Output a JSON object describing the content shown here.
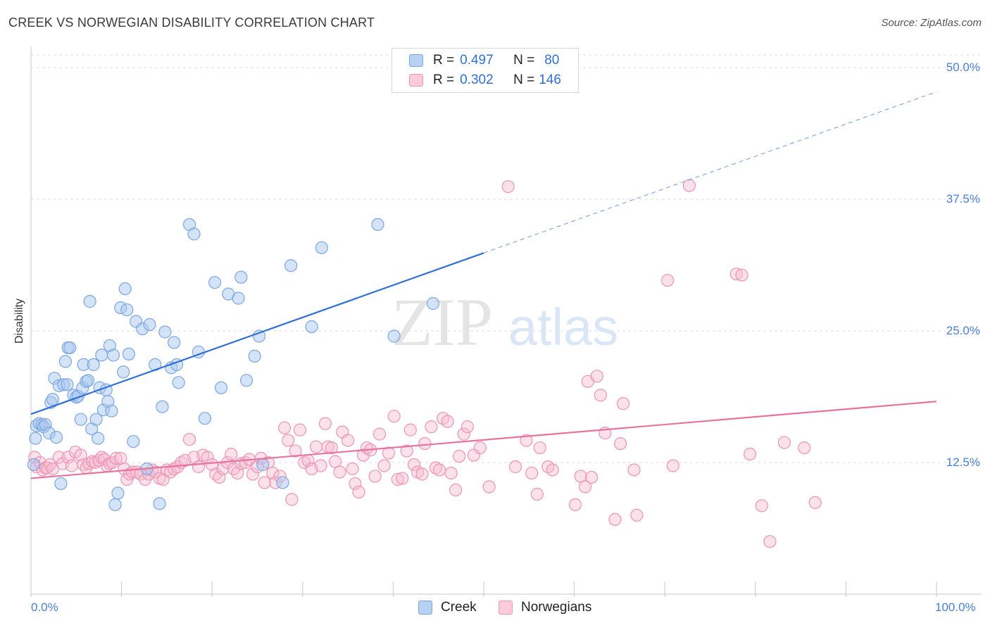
{
  "header": {
    "title": "CREEK VS NORWEGIAN DISABILITY CORRELATION CHART",
    "source": "Source: ZipAtlas.com"
  },
  "legend": {
    "creek": {
      "r_label": "R =",
      "r_value": "0.497",
      "n_label": "N =",
      "n_value": "80"
    },
    "norwegians": {
      "r_label": "R =",
      "r_value": "0.302",
      "n_label": "N =",
      "n_value": "146"
    }
  },
  "watermark": {
    "part1": "ZIP",
    "part2": "atlas"
  },
  "colors": {
    "creek_fill": "#a9c8f0",
    "creek_stroke": "#7aa7e0",
    "creek_line": "#2f6fd6",
    "norw_fill": "#f7bdd0",
    "norw_stroke": "#ee93b3",
    "norw_line": "#e8739d",
    "tick_label": "#4a7fd4",
    "grid": "#dddddd"
  },
  "chart_data": {
    "type": "scatter",
    "title": "CREEK VS NORWEGIAN DISABILITY CORRELATION CHART",
    "xlabel": "",
    "ylabel": "Disability",
    "xlim": [
      0,
      100
    ],
    "ylim": [
      0,
      50
    ],
    "y_ticks": [
      12.5,
      25.0,
      37.5,
      50.0
    ],
    "y_tick_labels": [
      "12.5%",
      "25.0%",
      "37.5%",
      "50.0%"
    ],
    "x_tick_labels": [
      "0.0%",
      "100.0%"
    ],
    "grid": "dashed horizontal",
    "legend_position": "top-center",
    "series": [
      {
        "name": "Creek",
        "trend": {
          "x0": 0,
          "y0": 17.1,
          "x1": 50,
          "y1": 32.4,
          "dashed_to_x": 100,
          "dashed_to_y": 47.7
        },
        "points": [
          [
            0.3,
            12.3
          ],
          [
            0.5,
            14.8
          ],
          [
            0.6,
            16.0
          ],
          [
            0.9,
            16.2
          ],
          [
            1.2,
            16.1
          ],
          [
            1.4,
            15.9
          ],
          [
            1.6,
            16.1
          ],
          [
            2.0,
            15.3
          ],
          [
            2.2,
            18.2
          ],
          [
            2.4,
            18.5
          ],
          [
            2.6,
            20.5
          ],
          [
            2.8,
            14.9
          ],
          [
            3.1,
            19.8
          ],
          [
            3.3,
            10.5
          ],
          [
            3.6,
            19.9
          ],
          [
            3.8,
            22.1
          ],
          [
            4.0,
            19.9
          ],
          [
            4.1,
            23.4
          ],
          [
            4.3,
            23.4
          ],
          [
            4.7,
            18.9
          ],
          [
            5.0,
            18.7
          ],
          [
            5.2,
            18.8
          ],
          [
            5.5,
            16.6
          ],
          [
            5.7,
            19.6
          ],
          [
            5.8,
            21.8
          ],
          [
            6.1,
            20.2
          ],
          [
            6.3,
            20.3
          ],
          [
            6.5,
            27.8
          ],
          [
            6.7,
            15.7
          ],
          [
            6.9,
            21.8
          ],
          [
            7.2,
            16.6
          ],
          [
            7.4,
            14.8
          ],
          [
            7.6,
            19.6
          ],
          [
            7.8,
            22.7
          ],
          [
            8.0,
            17.5
          ],
          [
            8.3,
            19.4
          ],
          [
            8.5,
            18.3
          ],
          [
            8.7,
            23.6
          ],
          [
            8.9,
            17.4
          ],
          [
            9.1,
            22.7
          ],
          [
            9.3,
            8.5
          ],
          [
            9.6,
            9.6
          ],
          [
            9.9,
            27.2
          ],
          [
            10.2,
            21.1
          ],
          [
            10.4,
            29.0
          ],
          [
            10.6,
            27.0
          ],
          [
            10.8,
            22.8
          ],
          [
            11.3,
            14.5
          ],
          [
            11.6,
            25.9
          ],
          [
            12.3,
            25.2
          ],
          [
            12.8,
            11.9
          ],
          [
            13.1,
            25.6
          ],
          [
            13.7,
            21.8
          ],
          [
            14.2,
            8.6
          ],
          [
            14.5,
            17.8
          ],
          [
            14.8,
            24.9
          ],
          [
            15.5,
            21.5
          ],
          [
            15.8,
            23.9
          ],
          [
            16.1,
            21.8
          ],
          [
            16.3,
            20.1
          ],
          [
            17.5,
            35.1
          ],
          [
            18.0,
            34.2
          ],
          [
            18.5,
            23.0
          ],
          [
            19.2,
            16.7
          ],
          [
            20.3,
            29.6
          ],
          [
            21.0,
            19.6
          ],
          [
            21.8,
            28.5
          ],
          [
            22.9,
            28.1
          ],
          [
            23.2,
            30.1
          ],
          [
            23.8,
            20.3
          ],
          [
            24.7,
            22.6
          ],
          [
            25.2,
            24.5
          ],
          [
            25.6,
            12.3
          ],
          [
            27.8,
            10.6
          ],
          [
            28.7,
            31.2
          ],
          [
            31.0,
            25.4
          ],
          [
            32.1,
            32.9
          ],
          [
            38.3,
            35.1
          ],
          [
            40.1,
            24.5
          ],
          [
            44.4,
            27.6
          ]
        ]
      },
      {
        "name": "Norwegians",
        "trend": {
          "x0": 0,
          "y0": 11.0,
          "x1": 100,
          "y1": 18.3
        },
        "points": [
          [
            0.4,
            13.0
          ],
          [
            0.6,
            12.1
          ],
          [
            1.0,
            12.5
          ],
          [
            1.3,
            11.8
          ],
          [
            1.6,
            12.0
          ],
          [
            1.8,
            12.0
          ],
          [
            2.1,
            12.3
          ],
          [
            2.4,
            11.9
          ],
          [
            3.1,
            13.0
          ],
          [
            3.5,
            12.4
          ],
          [
            4.1,
            13.0
          ],
          [
            4.5,
            12.2
          ],
          [
            4.9,
            13.5
          ],
          [
            5.5,
            13.2
          ],
          [
            5.8,
            12.3
          ],
          [
            6.1,
            12.0
          ],
          [
            6.4,
            12.4
          ],
          [
            6.8,
            12.6
          ],
          [
            7.1,
            12.5
          ],
          [
            7.5,
            12.7
          ],
          [
            7.8,
            13.0
          ],
          [
            8.1,
            12.8
          ],
          [
            8.4,
            12.2
          ],
          [
            8.7,
            12.4
          ],
          [
            9.0,
            12.5
          ],
          [
            9.4,
            12.9
          ],
          [
            9.9,
            12.9
          ],
          [
            10.3,
            11.9
          ],
          [
            10.6,
            10.9
          ],
          [
            10.9,
            11.4
          ],
          [
            11.2,
            11.6
          ],
          [
            11.7,
            11.6
          ],
          [
            12.1,
            11.4
          ],
          [
            12.6,
            10.9
          ],
          [
            13.0,
            11.4
          ],
          [
            13.4,
            11.8
          ],
          [
            13.8,
            11.6
          ],
          [
            14.2,
            11.0
          ],
          [
            14.6,
            10.9
          ],
          [
            15.0,
            11.8
          ],
          [
            15.4,
            11.6
          ],
          [
            15.8,
            11.9
          ],
          [
            16.2,
            12.1
          ],
          [
            16.6,
            12.5
          ],
          [
            17.0,
            12.7
          ],
          [
            17.5,
            14.7
          ],
          [
            18.0,
            13.0
          ],
          [
            18.5,
            12.1
          ],
          [
            19.0,
            13.2
          ],
          [
            19.5,
            13.0
          ],
          [
            20.0,
            12.3
          ],
          [
            20.4,
            11.4
          ],
          [
            20.8,
            11.1
          ],
          [
            21.2,
            11.9
          ],
          [
            21.7,
            12.5
          ],
          [
            22.1,
            13.3
          ],
          [
            22.4,
            11.9
          ],
          [
            22.8,
            11.5
          ],
          [
            23.2,
            12.4
          ],
          [
            23.7,
            12.5
          ],
          [
            24.1,
            12.8
          ],
          [
            24.5,
            11.4
          ],
          [
            25.0,
            12.1
          ],
          [
            25.4,
            12.9
          ],
          [
            25.8,
            10.6
          ],
          [
            26.2,
            12.5
          ],
          [
            26.7,
            11.5
          ],
          [
            27.0,
            10.6
          ],
          [
            27.5,
            11.2
          ],
          [
            28.0,
            15.8
          ],
          [
            28.4,
            14.6
          ],
          [
            28.8,
            9.0
          ],
          [
            29.2,
            13.6
          ],
          [
            29.7,
            15.6
          ],
          [
            30.2,
            12.5
          ],
          [
            30.6,
            12.7
          ],
          [
            31.0,
            11.9
          ],
          [
            31.5,
            14.0
          ],
          [
            32.0,
            12.2
          ],
          [
            32.5,
            16.2
          ],
          [
            32.8,
            14.0
          ],
          [
            33.2,
            13.9
          ],
          [
            33.6,
            12.6
          ],
          [
            34.1,
            11.6
          ],
          [
            34.4,
            15.4
          ],
          [
            35.0,
            14.6
          ],
          [
            35.5,
            11.9
          ],
          [
            35.8,
            10.5
          ],
          [
            36.2,
            9.7
          ],
          [
            36.7,
            13.2
          ],
          [
            37.1,
            13.9
          ],
          [
            37.5,
            13.7
          ],
          [
            38.0,
            11.2
          ],
          [
            38.5,
            15.2
          ],
          [
            39.0,
            12.2
          ],
          [
            39.5,
            13.4
          ],
          [
            40.1,
            16.9
          ],
          [
            40.5,
            10.9
          ],
          [
            41.0,
            11.0
          ],
          [
            41.5,
            13.6
          ],
          [
            41.9,
            15.6
          ],
          [
            42.3,
            12.3
          ],
          [
            42.7,
            11.6
          ],
          [
            43.2,
            11.4
          ],
          [
            43.5,
            14.3
          ],
          [
            44.2,
            15.9
          ],
          [
            44.7,
            12.0
          ],
          [
            45.1,
            11.8
          ],
          [
            45.5,
            16.7
          ],
          [
            46.0,
            16.4
          ],
          [
            46.4,
            11.5
          ],
          [
            46.9,
            9.9
          ],
          [
            47.3,
            13.1
          ],
          [
            47.8,
            15.2
          ],
          [
            48.2,
            15.9
          ],
          [
            48.9,
            13.2
          ],
          [
            49.6,
            13.9
          ],
          [
            50.6,
            10.2
          ],
          [
            52.7,
            38.7
          ],
          [
            53.5,
            12.1
          ],
          [
            54.7,
            14.6
          ],
          [
            55.3,
            11.5
          ],
          [
            55.9,
            9.5
          ],
          [
            56.2,
            13.9
          ],
          [
            57.1,
            12.1
          ],
          [
            57.6,
            11.8
          ],
          [
            60.1,
            8.5
          ],
          [
            60.7,
            11.2
          ],
          [
            61.2,
            10.2
          ],
          [
            61.5,
            20.2
          ],
          [
            61.9,
            11.1
          ],
          [
            62.5,
            20.7
          ],
          [
            62.9,
            18.9
          ],
          [
            63.4,
            15.3
          ],
          [
            64.5,
            7.1
          ],
          [
            65.1,
            14.3
          ],
          [
            65.4,
            18.1
          ],
          [
            66.6,
            11.8
          ],
          [
            66.9,
            7.5
          ],
          [
            70.3,
            29.8
          ],
          [
            70.9,
            12.2
          ],
          [
            72.7,
            38.8
          ],
          [
            77.9,
            30.4
          ],
          [
            78.5,
            30.3
          ],
          [
            79.4,
            13.3
          ],
          [
            80.7,
            8.4
          ],
          [
            81.6,
            5.0
          ],
          [
            83.2,
            14.4
          ],
          [
            85.4,
            13.9
          ],
          [
            86.6,
            8.7
          ]
        ]
      }
    ]
  }
}
